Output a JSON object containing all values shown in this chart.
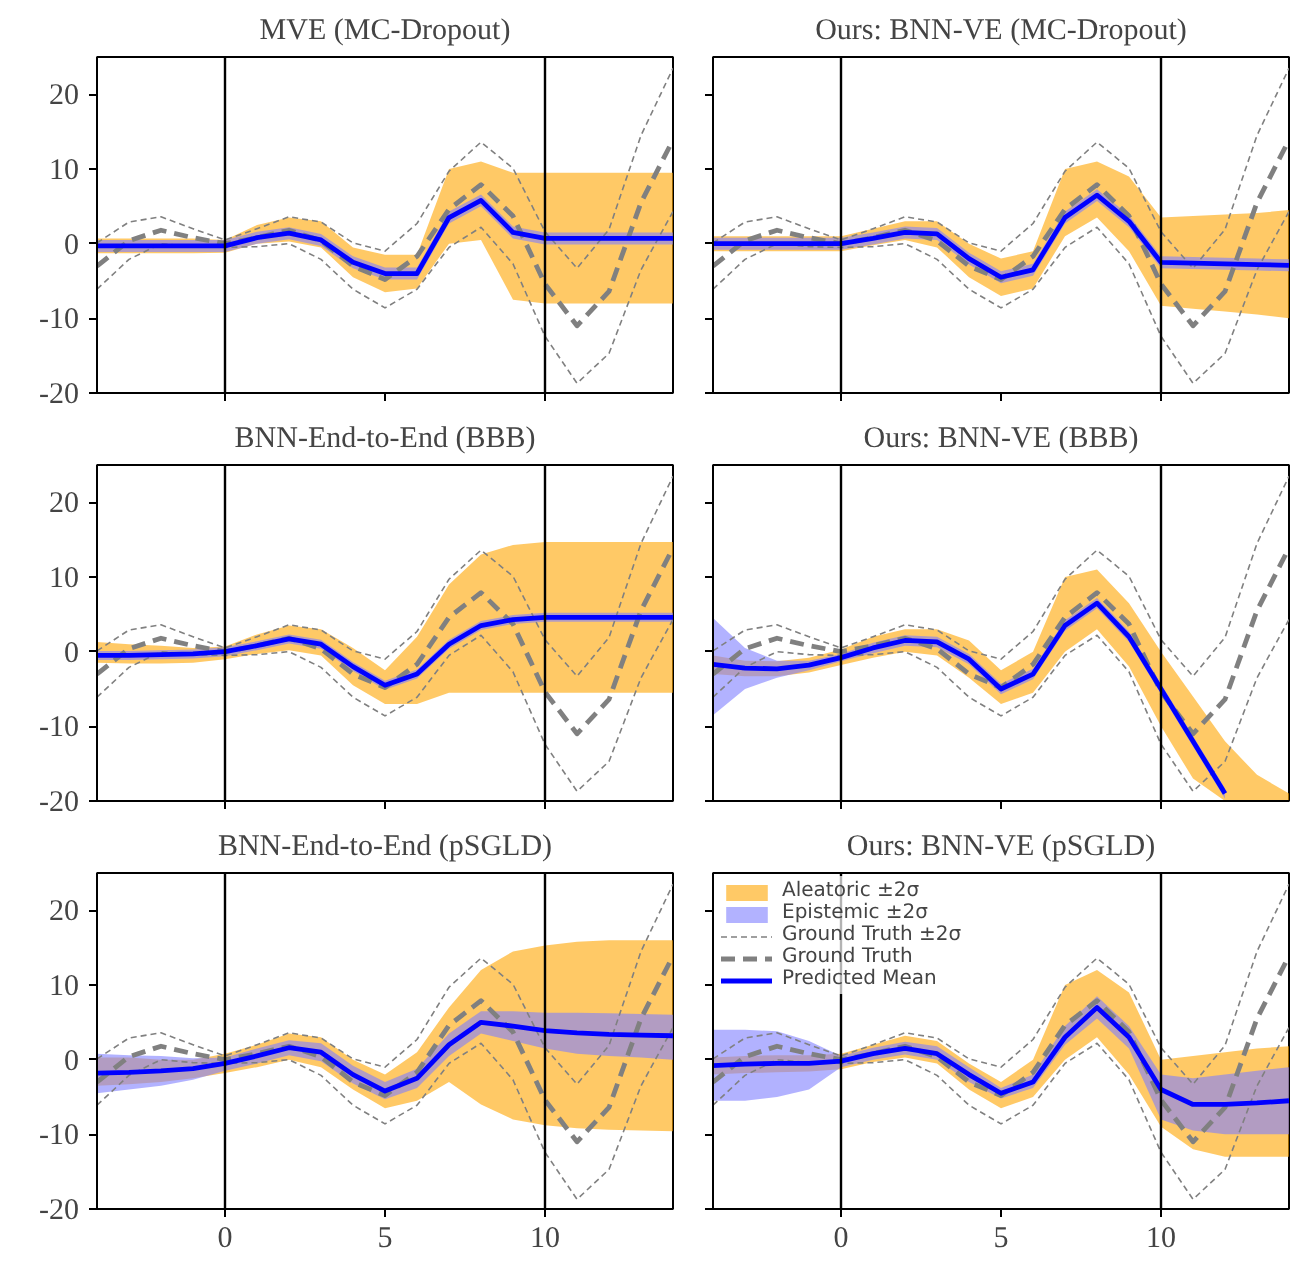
{
  "chart_data": [
    {
      "type": "line",
      "title": "MVE (MC-Dropout)",
      "x": [
        -4,
        -3,
        -2,
        -1,
        0,
        1,
        2,
        3,
        4,
        5,
        6,
        7,
        8,
        9,
        10,
        11,
        12,
        13,
        14
      ],
      "xlim": [
        -4,
        14
      ],
      "ylim": [
        -20,
        25
      ],
      "xticks": [
        0,
        5,
        10
      ],
      "yticks": [
        -20,
        -10,
        0,
        10,
        20
      ],
      "tick_labels": "y",
      "ref_lines": [
        {
          "axis": "x",
          "value": 0,
          "color": "#000000"
        },
        {
          "axis": "x",
          "value": 10,
          "color": "#000000"
        }
      ],
      "series": [
        {
          "color": "#ffa500",
          "values": [
            null,
            null,
            null,
            null,
            null,
            null,
            null,
            null,
            null,
            null,
            null,
            null,
            null,
            null,
            null,
            null,
            null,
            null,
            null
          ],
          "lower": [
            -1.3,
            -1.3,
            -1.3,
            -1.3,
            -1.2,
            0.0,
            0.3,
            -0.5,
            -4.5,
            -6.5,
            -6.0,
            0.0,
            0.5,
            -7.5,
            -8.0,
            -8.0,
            -8.0,
            -8.0,
            -8.0
          ],
          "upper": [
            0.7,
            0.7,
            0.7,
            0.7,
            0.5,
            2.5,
            3.5,
            3.0,
            -0.5,
            -1.5,
            -1.5,
            10.0,
            11.0,
            9.5,
            9.5,
            9.5,
            9.5,
            9.5,
            9.5
          ]
        },
        {
          "color": "#7f7fff",
          "values": [
            null,
            null,
            null,
            null,
            null,
            null,
            null,
            null,
            null,
            null,
            null,
            null,
            null,
            null,
            null,
            null,
            null,
            null,
            null
          ],
          "lower": [
            -1.1,
            -1.1,
            -1.1,
            -1.1,
            -1.1,
            0.0,
            0.6,
            -0.3,
            -3.3,
            -4.8,
            -4.8,
            2.7,
            5.0,
            0.7,
            -0.1,
            -0.1,
            -0.1,
            -0.1,
            -0.1
          ],
          "upper": [
            0.5,
            0.5,
            0.5,
            0.5,
            0.5,
            1.6,
            2.2,
            1.3,
            -1.7,
            -3.2,
            -3.2,
            4.3,
            6.6,
            2.3,
            1.5,
            1.5,
            1.5,
            1.5,
            1.5
          ]
        },
        {
          "line_style": "dotted",
          "color": "#808080",
          "values": [
            0.1,
            2.9,
            3.6,
            2.0,
            0.5,
            2.0,
            3.6,
            2.9,
            0.1,
            -1.0,
            2.7,
            9.7,
            13.6,
            10.1,
            1.6,
            -3.3,
            1.9,
            14.5,
            23.5
          ]
        },
        {
          "line_style": "dotted",
          "color": "#808080",
          "values": [
            -6.1,
            -2.1,
            0.0,
            -0.4,
            -0.5,
            -0.4,
            0.0,
            -2.1,
            -6.1,
            -8.6,
            -6.1,
            -0.5,
            2.2,
            -2.7,
            -12.4,
            -18.7,
            -14.7,
            -3.5,
            4.3
          ]
        },
        {
          "line_style": "dashed",
          "color": "#808080",
          "values": [
            -3.0,
            0.4,
            1.8,
            0.8,
            0,
            0.8,
            1.8,
            0.4,
            -3.0,
            -4.8,
            -1.7,
            4.6,
            7.9,
            3.7,
            -5.4,
            -11.0,
            -6.4,
            5.5,
            13.9
          ]
        },
        {
          "color": "#0000ff",
          "values": [
            -0.3,
            -0.3,
            -0.3,
            -0.3,
            -0.3,
            0.8,
            1.4,
            0.5,
            -2.5,
            -4.0,
            -4.0,
            3.5,
            5.8,
            1.5,
            0.7,
            0.7,
            0.7,
            0.7,
            0.7
          ]
        }
      ]
    },
    {
      "type": "line",
      "title": "Ours: BNN-VE (MC-Dropout)",
      "x": [
        -4,
        -3,
        -2,
        -1,
        0,
        1,
        2,
        3,
        4,
        5,
        6,
        7,
        8,
        9,
        10,
        11,
        12,
        13,
        14
      ],
      "xlim": [
        -4,
        14
      ],
      "ylim": [
        -20,
        25
      ],
      "xticks": [
        0,
        5,
        10
      ],
      "yticks": [
        -20,
        -10,
        0,
        10,
        20
      ],
      "tick_labels": false,
      "ref_lines": [
        {
          "axis": "x",
          "value": 0,
          "color": "#000000"
        },
        {
          "axis": "x",
          "value": 10,
          "color": "#000000"
        }
      ],
      "series": [
        {
          "color": "#ffa500",
          "values": [
            null,
            null,
            null,
            null,
            null,
            null,
            null,
            null,
            null,
            null,
            null,
            null,
            null,
            null,
            null,
            null,
            null,
            null,
            null
          ],
          "lower": [
            -1,
            -1,
            -1,
            -1,
            -1,
            -0.2,
            0.5,
            -0.5,
            -4.5,
            -7.0,
            -6.0,
            1.0,
            3.5,
            -1.0,
            -8.3,
            -8.7,
            -9.1,
            -9.5,
            -10.0
          ],
          "upper": [
            1,
            1,
            1,
            1,
            1,
            2.0,
            3.0,
            3.0,
            0,
            -2.0,
            -1.0,
            10.0,
            11.0,
            9.0,
            3.5,
            3.7,
            3.9,
            4.1,
            4.5
          ]
        },
        {
          "color": "#7f7fff",
          "values": [
            null,
            null,
            null,
            null,
            null,
            null,
            null,
            null,
            null,
            null,
            null,
            null,
            null,
            null,
            null,
            null,
            null,
            null,
            null
          ],
          "lower": [
            -0.8,
            -0.8,
            -0.8,
            -0.8,
            -0.8,
            -0.1,
            0.7,
            0.5,
            -2.8,
            -5.3,
            -4.3,
            2.7,
            5.7,
            2.2,
            -3.3,
            -3.4,
            -3.5,
            -3.6,
            -3.7
          ],
          "upper": [
            0.8,
            0.8,
            0.8,
            0.8,
            0.8,
            1.5,
            2.3,
            2.1,
            -1.2,
            -3.7,
            -2.7,
            4.3,
            7.3,
            3.8,
            -1.7,
            -1.8,
            -1.9,
            -2.0,
            -2.1
          ]
        },
        {
          "line_style": "dotted",
          "color": "#808080",
          "values": [
            0.1,
            2.9,
            3.6,
            2.0,
            0.5,
            2.0,
            3.6,
            2.9,
            0.1,
            -1.0,
            2.7,
            9.7,
            13.6,
            10.1,
            1.6,
            -3.3,
            1.9,
            14.5,
            23.5
          ]
        },
        {
          "line_style": "dotted",
          "color": "#808080",
          "values": [
            -6.1,
            -2.1,
            0.0,
            -0.4,
            -0.5,
            -0.4,
            0.0,
            -2.1,
            -6.1,
            -8.6,
            -6.1,
            -0.5,
            2.2,
            -2.7,
            -12.4,
            -18.7,
            -14.7,
            -3.5,
            4.3
          ]
        },
        {
          "line_style": "dashed",
          "color": "#808080",
          "values": [
            -3.0,
            0.4,
            1.8,
            0.8,
            0,
            0.8,
            1.8,
            0.4,
            -3.0,
            -4.8,
            -1.7,
            4.6,
            7.9,
            3.7,
            -5.4,
            -11.0,
            -6.4,
            5.5,
            13.9
          ]
        },
        {
          "color": "#0000ff",
          "values": [
            0,
            0,
            0,
            0,
            0,
            0.7,
            1.5,
            1.3,
            -2.0,
            -4.5,
            -3.5,
            3.5,
            6.5,
            3.0,
            -2.5,
            -2.6,
            -2.7,
            -2.8,
            -2.9
          ]
        }
      ]
    },
    {
      "type": "line",
      "title": "BNN-End-to-End (BBB)",
      "x": [
        -4,
        -3,
        -2,
        -1,
        0,
        1,
        2,
        3,
        4,
        5,
        6,
        7,
        8,
        9,
        10,
        11,
        12,
        13,
        14
      ],
      "xlim": [
        -4,
        14
      ],
      "ylim": [
        -20,
        25
      ],
      "xticks": [
        0,
        5,
        10
      ],
      "yticks": [
        -20,
        -10,
        0,
        10,
        20
      ],
      "tick_labels": "y",
      "ref_lines": [
        {
          "axis": "x",
          "value": 0,
          "color": "#000000"
        },
        {
          "axis": "x",
          "value": 10,
          "color": "#000000"
        }
      ],
      "series": [
        {
          "color": "#ffa500",
          "values": [
            null,
            null,
            null,
            null,
            null,
            null,
            null,
            null,
            null,
            null,
            null,
            null,
            null,
            null,
            null,
            null,
            null,
            null,
            null
          ],
          "lower": [
            -1.5,
            -1.6,
            -1.6,
            -1.5,
            -1.0,
            -0.3,
            0.2,
            -0.5,
            -4.5,
            -7.0,
            -7.0,
            -5.5,
            -5.5,
            -5.5,
            -5.5,
            -5.5,
            -5.5,
            -5.5,
            -5.5
          ],
          "upper": [
            1.3,
            1.0,
            0.8,
            0.5,
            0.7,
            2.3,
            3.5,
            3.0,
            0.5,
            -2.5,
            2.0,
            9.0,
            13.0,
            14.3,
            14.7,
            14.7,
            14.7,
            14.7,
            14.7
          ]
        },
        {
          "color": "#7f7fff",
          "values": [
            null,
            null,
            null,
            null,
            null,
            null,
            null,
            null,
            null,
            null,
            null,
            null,
            null,
            null,
            null,
            null,
            null,
            null,
            null
          ],
          "lower": [
            -1.1,
            -1.1,
            -1.0,
            -0.9,
            -0.6,
            0.2,
            1.1,
            0.4,
            -2.6,
            -5.1,
            -3.6,
            0.4,
            2.9,
            3.7,
            4.0,
            4.0,
            4.0,
            4.0,
            4.0
          ],
          "upper": [
            0.1,
            0.1,
            0.2,
            0.3,
            0.6,
            1.4,
            2.3,
            1.6,
            -1.4,
            -3.9,
            -2.4,
            1.6,
            4.1,
            4.9,
            5.2,
            5.2,
            5.2,
            5.2,
            5.2
          ]
        },
        {
          "line_style": "dotted",
          "color": "#808080",
          "values": [
            0.1,
            2.9,
            3.6,
            2.0,
            0.5,
            2.0,
            3.6,
            2.9,
            0.1,
            -1.0,
            2.7,
            9.7,
            13.6,
            10.1,
            1.6,
            -3.3,
            1.9,
            14.5,
            23.5
          ]
        },
        {
          "line_style": "dotted",
          "color": "#808080",
          "values": [
            -6.1,
            -2.1,
            0.0,
            -0.4,
            -0.5,
            -0.4,
            0.0,
            -2.1,
            -6.1,
            -8.6,
            -6.1,
            -0.5,
            2.2,
            -2.7,
            -12.4,
            -18.7,
            -14.7,
            -3.5,
            4.3
          ]
        },
        {
          "line_style": "dashed",
          "color": "#808080",
          "values": [
            -3.0,
            0.4,
            1.8,
            0.8,
            0,
            0.8,
            1.8,
            0.4,
            -3.0,
            -4.8,
            -1.7,
            4.6,
            7.9,
            3.7,
            -5.4,
            -11.0,
            -6.4,
            5.5,
            13.9
          ]
        },
        {
          "color": "#0000ff",
          "values": [
            -0.5,
            -0.5,
            -0.4,
            -0.3,
            0,
            0.8,
            1.7,
            1.0,
            -2.0,
            -4.5,
            -3.0,
            1.0,
            3.5,
            4.3,
            4.6,
            4.6,
            4.6,
            4.6,
            4.6
          ]
        }
      ]
    },
    {
      "type": "line",
      "title": "Ours: BNN-VE (BBB)",
      "x": [
        -4,
        -3,
        -2,
        -1,
        0,
        1,
        2,
        3,
        4,
        5,
        6,
        7,
        8,
        9,
        10,
        11,
        12,
        13,
        14
      ],
      "xlim": [
        -4,
        14
      ],
      "ylim": [
        -20,
        25
      ],
      "xticks": [
        0,
        5,
        10
      ],
      "yticks": [
        -20,
        -10,
        0,
        10,
        20
      ],
      "tick_labels": false,
      "ref_lines": [
        {
          "axis": "x",
          "value": 0,
          "color": "#000000"
        },
        {
          "axis": "x",
          "value": 10,
          "color": "#000000"
        }
      ],
      "series": [
        {
          "color": "#ffa500",
          "values": [
            null,
            null,
            null,
            null,
            null,
            null,
            null,
            null,
            null,
            null,
            null,
            null,
            null,
            null,
            null,
            null,
            null,
            null,
            null
          ],
          "lower": [
            -3.0,
            -3.3,
            -3.3,
            -2.8,
            -1.8,
            -0.8,
            0.0,
            -0.5,
            -3.5,
            -7.0,
            -5.5,
            0.0,
            3.0,
            -2.0,
            -10.0,
            -17.0,
            -20,
            -20,
            -20
          ],
          "upper": [
            -0.5,
            -1.2,
            -1.3,
            -0.8,
            0.3,
            2.0,
            3.0,
            3.0,
            1.5,
            -2.5,
            0.0,
            10.0,
            11.0,
            6.5,
            0.0,
            -6.0,
            -12.0,
            -16.5,
            -19.0
          ]
        },
        {
          "color": "#7f7fff",
          "values": [
            null,
            null,
            null,
            null,
            null,
            null,
            null,
            null,
            null,
            null,
            null,
            null,
            null,
            null,
            null,
            null,
            null,
            null,
            null
          ],
          "lower": [
            -8.5,
            -5.0,
            -3.5,
            -2.5,
            -1.3,
            -0.2,
            0.8,
            0.6,
            -1.7,
            -5.7,
            -3.7,
            2.8,
            5.8,
            1.3,
            -5.7,
            -12.7,
            -19.7,
            null,
            null
          ],
          "upper": [
            4.5,
            0.5,
            -1.2,
            -1.2,
            -0.3,
            1.2,
            2.2,
            2.0,
            -0.3,
            -4.3,
            -2.3,
            4.2,
            7.2,
            2.7,
            -4.3,
            -11.3,
            -18.3,
            null,
            null
          ]
        },
        {
          "line_style": "dotted",
          "color": "#808080",
          "values": [
            0.1,
            2.9,
            3.6,
            2.0,
            0.5,
            2.0,
            3.6,
            2.9,
            0.1,
            -1.0,
            2.7,
            9.7,
            13.6,
            10.1,
            1.6,
            -3.3,
            1.9,
            14.5,
            23.5
          ]
        },
        {
          "line_style": "dotted",
          "color": "#808080",
          "values": [
            -6.1,
            -2.1,
            0.0,
            -0.4,
            -0.5,
            -0.4,
            0.0,
            -2.1,
            -6.1,
            -8.6,
            -6.1,
            -0.5,
            2.2,
            -2.7,
            -12.4,
            -18.7,
            -14.7,
            -3.5,
            4.3
          ]
        },
        {
          "line_style": "dashed",
          "color": "#808080",
          "values": [
            -3.0,
            0.4,
            1.8,
            0.8,
            0,
            0.8,
            1.8,
            0.4,
            -3.0,
            -4.8,
            -1.7,
            4.6,
            7.9,
            3.7,
            -5.4,
            -11.0,
            -6.4,
            5.5,
            13.9
          ]
        },
        {
          "color": "#0000ff",
          "values": [
            -1.7,
            -2.2,
            -2.3,
            -1.8,
            -0.8,
            0.5,
            1.5,
            1.3,
            -1.0,
            -5.0,
            -3.0,
            3.5,
            6.5,
            2.0,
            -5.0,
            -12.0,
            -19.0,
            null,
            null
          ]
        }
      ]
    },
    {
      "type": "line",
      "title": "BNN-End-to-End (pSGLD)",
      "x": [
        -4,
        -3,
        -2,
        -1,
        0,
        1,
        2,
        3,
        4,
        5,
        6,
        7,
        8,
        9,
        10,
        11,
        12,
        13,
        14
      ],
      "xlim": [
        -4,
        14
      ],
      "ylim": [
        -20,
        25
      ],
      "xticks": [
        0,
        5,
        10
      ],
      "yticks": [
        -20,
        -10,
        0,
        10,
        20
      ],
      "ref_lines": [
        {
          "axis": "x",
          "value": 0,
          "color": "#000000"
        },
        {
          "axis": "x",
          "value": 10,
          "color": "#000000"
        }
      ],
      "series": [
        {
          "color": "#ffa500",
          "values": [
            null,
            null,
            null,
            null,
            null,
            null,
            null,
            null,
            null,
            null,
            null,
            null,
            null,
            null,
            null,
            null,
            null,
            null,
            null
          ],
          "lower": [
            -3.5,
            -3.3,
            -3.0,
            -2.5,
            -1.8,
            -1.0,
            0.0,
            -1.0,
            -4.0,
            -6.5,
            -5.5,
            -3.0,
            -6.0,
            -8.0,
            -8.8,
            -9.2,
            -9.4,
            -9.5,
            -9.6
          ],
          "upper": [
            0.3,
            0.3,
            0.0,
            0.0,
            0.8,
            2.0,
            3.5,
            3.0,
            0.0,
            -2.0,
            1.0,
            7.0,
            12.0,
            14.5,
            15.3,
            15.8,
            16.0,
            16.0,
            16.0
          ]
        },
        {
          "color": "#7f7fff",
          "values": [
            null,
            null,
            null,
            null,
            null,
            null,
            null,
            null,
            null,
            null,
            null,
            null,
            null,
            null,
            null,
            null,
            null,
            null,
            null
          ],
          "lower": [
            -4.5,
            -4.0,
            -3.5,
            -2.7,
            -1.5,
            -0.5,
            0.6,
            -0.2,
            -3.2,
            -5.3,
            -3.8,
            0.5,
            3.5,
            2.5,
            1.5,
            0.8,
            0.5,
            0.3,
            0.0
          ],
          "upper": [
            0.8,
            0.6,
            0.5,
            0.2,
            0.3,
            1.5,
            2.6,
            2.2,
            -0.8,
            -3.0,
            -1.2,
            3.5,
            6.5,
            6.5,
            6.3,
            6.3,
            6.2,
            6.1,
            6.0
          ]
        },
        {
          "line_style": "dotted",
          "color": "#808080",
          "values": [
            0.1,
            2.9,
            3.6,
            2.0,
            0.5,
            2.0,
            3.6,
            2.9,
            0.1,
            -1.0,
            2.7,
            9.7,
            13.6,
            10.1,
            1.6,
            -3.3,
            1.9,
            14.5,
            23.5
          ]
        },
        {
          "line_style": "dotted",
          "color": "#808080",
          "values": [
            -6.1,
            -2.1,
            0.0,
            -0.4,
            -0.5,
            -0.4,
            0.0,
            -2.1,
            -6.1,
            -8.6,
            -6.1,
            -0.5,
            2.2,
            -2.7,
            -12.4,
            -18.7,
            -14.7,
            -3.5,
            4.3
          ]
        },
        {
          "line_style": "dashed",
          "color": "#808080",
          "values": [
            -3.0,
            0.4,
            1.8,
            0.8,
            0,
            0.8,
            1.8,
            0.4,
            -3.0,
            -4.8,
            -1.7,
            4.6,
            7.9,
            3.7,
            -5.4,
            -11.0,
            -6.4,
            5.5,
            13.9
          ]
        },
        {
          "color": "#0000ff",
          "values": [
            -1.8,
            -1.7,
            -1.5,
            -1.2,
            -0.5,
            0.5,
            1.6,
            1.0,
            -2.0,
            -4.2,
            -2.5,
            2.0,
            5.0,
            4.5,
            3.9,
            3.6,
            3.4,
            3.3,
            3.2
          ]
        }
      ]
    },
    {
      "type": "line",
      "title": "Ours: BNN-VE (pSGLD)",
      "x": [
        -4,
        -3,
        -2,
        -1,
        0,
        1,
        2,
        3,
        4,
        5,
        6,
        7,
        8,
        9,
        10,
        11,
        12,
        13,
        14
      ],
      "xlim": [
        -4,
        14
      ],
      "ylim": [
        -20,
        25
      ],
      "xticks": [
        0,
        5,
        10
      ],
      "yticks": [
        -20,
        -10,
        0,
        10,
        20
      ],
      "tick_labels": "x",
      "legend": "top left",
      "ref_lines": [
        {
          "axis": "x",
          "value": 0,
          "color": "#000000"
        },
        {
          "axis": "x",
          "value": 10,
          "color": "#000000"
        }
      ],
      "series": [
        {
          "name": "Aleatoric ±2σ",
          "color": "#ffa500",
          "values": [
            null,
            null,
            null,
            null,
            null,
            null,
            null,
            null,
            null,
            null,
            null,
            null,
            null,
            null,
            null,
            null,
            null,
            null,
            null
          ],
          "lower": [
            -2.0,
            -1.8,
            -1.7,
            -1.6,
            -1.3,
            -0.3,
            0.3,
            -0.5,
            -4.0,
            -6.5,
            -5.0,
            0.0,
            3.0,
            -2.0,
            -9.0,
            -12.0,
            -13.0,
            -13.0,
            -13.0
          ],
          "upper": [
            0.3,
            0.5,
            0.6,
            0.6,
            0.8,
            2.0,
            3.2,
            2.5,
            -0.5,
            -3.0,
            0.0,
            10.0,
            12.0,
            9.0,
            0.0,
            0.5,
            1.0,
            1.5,
            1.8
          ]
        },
        {
          "name": "Epistemic ±2σ",
          "color": "#7f7fff",
          "values": [
            null,
            null,
            null,
            null,
            null,
            null,
            null,
            null,
            null,
            null,
            null,
            null,
            null,
            null,
            null,
            null,
            null,
            null,
            null
          ],
          "lower": [
            -5.5,
            -5.5,
            -5.0,
            -4.0,
            -1.0,
            0.0,
            0.7,
            0.0,
            -3.0,
            -5.2,
            -3.8,
            2.0,
            5.5,
            1.5,
            -8.0,
            -9.5,
            -10.0,
            -10.0,
            -10.0
          ],
          "upper": [
            4.0,
            4.0,
            3.8,
            2.5,
            0.5,
            1.6,
            2.4,
            1.8,
            -1.0,
            -3.8,
            -2.0,
            4.5,
            8.5,
            4.5,
            -2.0,
            -2.5,
            -2.0,
            -1.5,
            -1.0
          ]
        },
        {
          "name": "Ground Truth ±2σ",
          "line_style": "dotted",
          "color": "#808080",
          "values": [
            0.1,
            2.9,
            3.6,
            2.0,
            0.5,
            2.0,
            3.6,
            2.9,
            0.1,
            -1.0,
            2.7,
            9.7,
            13.6,
            10.1,
            1.6,
            -3.3,
            1.9,
            14.5,
            23.5
          ]
        },
        {
          "line_style": "dotted",
          "color": "#808080",
          "values": [
            -6.1,
            -2.1,
            0.0,
            -0.4,
            -0.5,
            -0.4,
            0.0,
            -2.1,
            -6.1,
            -8.6,
            -6.1,
            -0.5,
            2.2,
            -2.7,
            -12.4,
            -18.7,
            -14.7,
            -3.5,
            4.3
          ]
        },
        {
          "name": "Ground Truth",
          "line_style": "dashed",
          "color": "#808080",
          "values": [
            -3.0,
            0.4,
            1.8,
            0.8,
            0,
            0.8,
            1.8,
            0.4,
            -3.0,
            -4.8,
            -1.7,
            4.6,
            7.9,
            3.7,
            -5.4,
            -11.0,
            -6.4,
            5.5,
            13.9
          ]
        },
        {
          "name": "Predicted Mean",
          "color": "#0000ff",
          "values": [
            -0.8,
            -0.6,
            -0.5,
            -0.5,
            -0.2,
            0.8,
            1.5,
            0.8,
            -2.0,
            -4.5,
            -3.0,
            3.0,
            7.0,
            3.0,
            -4.0,
            -6.0,
            -6.0,
            -5.8,
            -5.5
          ]
        }
      ]
    }
  ]
}
